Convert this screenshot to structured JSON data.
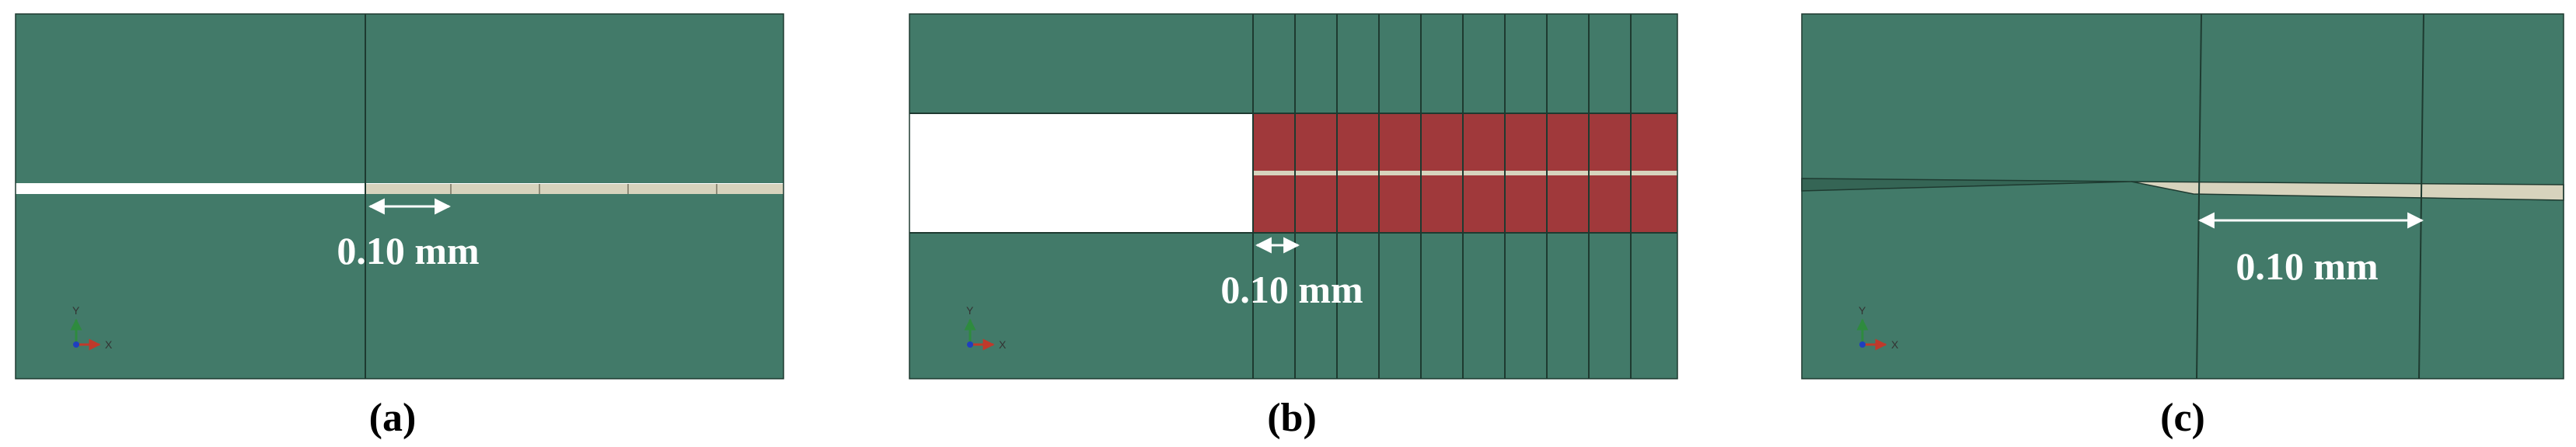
{
  "colors": {
    "mesh_green": "#427a69",
    "element_line": "#1e3a30",
    "crack_beige": "#d7d3bd",
    "cohesive_red": "#a0393b",
    "background": "#ffffff",
    "axis_x": "#c0392b",
    "axis_y": "#2e8b3e",
    "axis_z": "#1f3fbf"
  },
  "panels": [
    {
      "id": "a",
      "caption": "(a)",
      "dimension": "0.10 mm",
      "axis_labels": {
        "x": "X",
        "y": "Y"
      }
    },
    {
      "id": "b",
      "caption": "(b)",
      "dimension": "0.10 mm",
      "axis_labels": {
        "x": "X",
        "y": "Y"
      }
    },
    {
      "id": "c",
      "caption": "(c)",
      "dimension": "0.10 mm",
      "axis_labels": {
        "x": "X",
        "y": "Y"
      }
    }
  ],
  "icons": [
    "dimension-arrow-icon",
    "axis-triad-icon"
  ]
}
